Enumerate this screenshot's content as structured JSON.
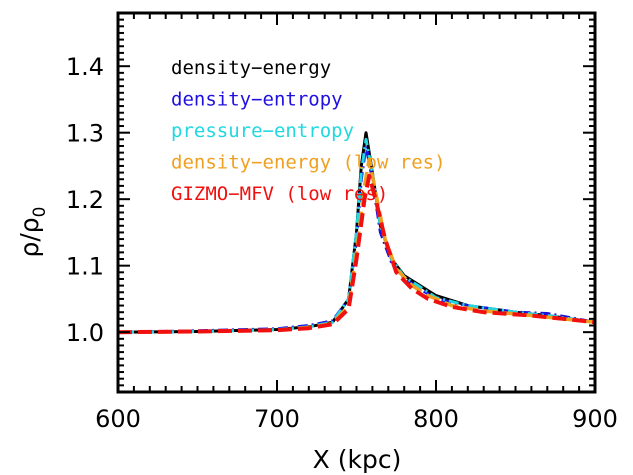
{
  "chart_data": {
    "type": "line",
    "xlabel": "X (kpc)",
    "ylabel": "ρ/ρ",
    "ylabel_subscript": "0",
    "xlim": [
      600,
      900
    ],
    "ylim": [
      0.91,
      1.48
    ],
    "xticks": [
      600,
      700,
      800,
      900
    ],
    "yticks": [
      1.0,
      1.1,
      1.2,
      1.3,
      1.4
    ],
    "ytick_labels": [
      "1.0",
      "1.1",
      "1.2",
      "1.3",
      "1.4"
    ],
    "grid": false,
    "legend_position": "top-left",
    "series": [
      {
        "name": "density−energy",
        "color": "#000000",
        "style": "solid",
        "x": [
          600,
          650,
          700,
          720,
          735,
          745,
          750,
          753,
          756,
          760,
          765,
          772,
          780,
          790,
          800,
          820,
          850,
          870,
          900
        ],
        "y": [
          1.0,
          1.001,
          1.004,
          1.008,
          1.015,
          1.05,
          1.15,
          1.25,
          1.3,
          1.24,
          1.16,
          1.11,
          1.085,
          1.07,
          1.055,
          1.04,
          1.03,
          1.025,
          1.015
        ]
      },
      {
        "name": "density−entropy",
        "color": "#1f10e0",
        "style": "dashdot",
        "x": [
          600,
          650,
          700,
          720,
          735,
          745,
          750,
          753,
          756,
          760,
          765,
          772,
          780,
          790,
          800,
          820,
          850,
          870,
          900
        ],
        "y": [
          1.0,
          1.002,
          1.005,
          1.01,
          1.017,
          1.05,
          1.14,
          1.23,
          1.28,
          1.23,
          1.15,
          1.105,
          1.08,
          1.065,
          1.05,
          1.04,
          1.03,
          1.028,
          1.015
        ]
      },
      {
        "name": "pressure−entropy",
        "color": "#20d8e0",
        "style": "dashdot",
        "x": [
          600,
          650,
          700,
          720,
          735,
          745,
          750,
          753,
          756,
          760,
          765,
          772,
          780,
          790,
          800,
          820,
          850,
          870,
          900
        ],
        "y": [
          1.0,
          1.001,
          1.004,
          1.008,
          1.015,
          1.05,
          1.15,
          1.24,
          1.29,
          1.24,
          1.16,
          1.11,
          1.083,
          1.068,
          1.052,
          1.04,
          1.03,
          1.025,
          1.015
        ]
      },
      {
        "name": "density−energy (low res)",
        "color": "#f0a020",
        "style": "dashed",
        "x": [
          600,
          650,
          700,
          720,
          735,
          745,
          750,
          755,
          758,
          762,
          768,
          775,
          785,
          795,
          810,
          830,
          860,
          900
        ],
        "y": [
          1.0,
          1.001,
          1.003,
          1.007,
          1.013,
          1.04,
          1.12,
          1.22,
          1.26,
          1.21,
          1.14,
          1.095,
          1.07,
          1.055,
          1.04,
          1.032,
          1.025,
          1.015
        ]
      },
      {
        "name": "GIZMO−MFV (low res)",
        "color": "#f01010",
        "style": "dashed",
        "x": [
          600,
          650,
          700,
          720,
          735,
          745,
          750,
          755,
          758,
          762,
          768,
          775,
          785,
          795,
          810,
          830,
          860,
          900
        ],
        "y": [
          1.0,
          1.001,
          1.003,
          1.006,
          1.012,
          1.035,
          1.11,
          1.2,
          1.235,
          1.2,
          1.14,
          1.09,
          1.065,
          1.05,
          1.038,
          1.03,
          1.025,
          1.015
        ]
      }
    ]
  }
}
